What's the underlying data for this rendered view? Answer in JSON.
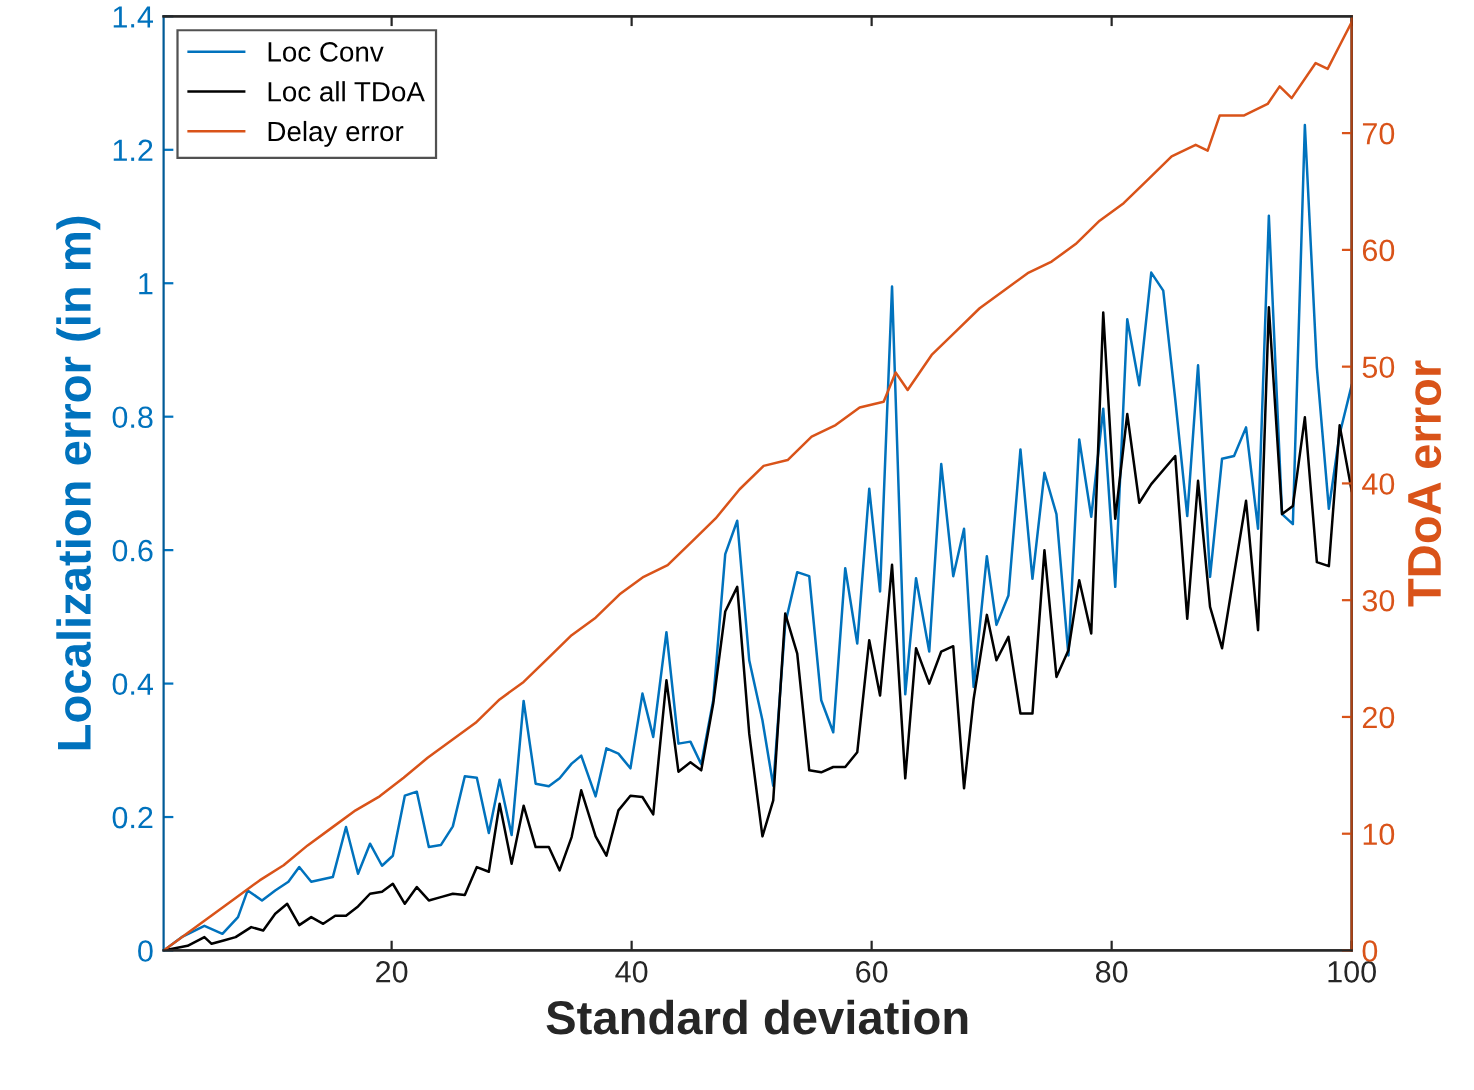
{
  "chart_data": {
    "type": "line",
    "xlabel": "Standard deviation",
    "ylabel": "Localization error (in m)",
    "y2label": "TDoA error",
    "series": [
      {
        "name": "Loc Conv",
        "color": "#0072bd",
        "x": [
          1,
          2.5,
          4.4,
          5.9,
          7.2,
          8.0,
          9.2,
          10.3,
          11.4,
          12.3,
          13.3,
          15.1,
          16.2,
          17.2,
          18.2,
          19.2,
          20.1,
          21.1,
          22.1,
          23.1,
          24.1,
          25.1,
          26.1,
          27.1,
          28.1,
          29.0,
          30.0,
          31.0,
          32.0,
          33.1,
          34.0,
          35.0,
          35.8,
          37.0,
          37.9,
          38.9,
          39.9,
          40.9,
          41.8,
          42.9,
          43.9,
          44.9,
          45.8,
          46.8,
          47.8,
          48.8,
          49.8,
          50.9,
          51.8,
          52.8,
          53.8,
          54.8,
          55.8,
          56.8,
          57.8,
          58.8,
          59.8,
          60.7,
          61.7,
          62.8,
          63.7,
          64.8,
          65.8,
          66.8,
          67.7,
          68.5,
          69.6,
          70.4,
          71.4,
          72.4,
          73.4,
          74.4,
          75.4,
          76.4,
          77.3,
          78.3,
          79.3,
          80.3,
          81.3,
          82.3,
          83.3,
          84.3,
          85.3,
          86.3,
          87.2,
          88.2,
          89.2,
          90.2,
          91.2,
          92.2,
          93.1,
          94.2,
          95.1,
          96.1,
          97.1,
          98.1,
          99.0,
          100
        ],
        "values": [
          0,
          0.02,
          0.037,
          0.025,
          0.05,
          0.09,
          0.075,
          0.09,
          0.103,
          0.125,
          0.103,
          0.11,
          0.185,
          0.115,
          0.16,
          0.127,
          0.142,
          0.232,
          0.238,
          0.155,
          0.158,
          0.186,
          0.261,
          0.259,
          0.176,
          0.256,
          0.173,
          0.374,
          0.25,
          0.246,
          0.258,
          0.28,
          0.292,
          0.231,
          0.303,
          0.295,
          0.273,
          0.385,
          0.32,
          0.477,
          0.31,
          0.313,
          0.279,
          0.375,
          0.594,
          0.644,
          0.435,
          0.345,
          0.247,
          0.49,
          0.567,
          0.561,
          0.375,
          0.327,
          0.573,
          0.46,
          0.692,
          0.538,
          0.995,
          0.384,
          0.558,
          0.448,
          0.729,
          0.561,
          0.632,
          0.395,
          0.591,
          0.488,
          0.532,
          0.751,
          0.557,
          0.716,
          0.654,
          0.442,
          0.766,
          0.65,
          0.812,
          0.545,
          0.946,
          0.847,
          1.016,
          0.989,
          0.826,
          0.651,
          0.877,
          0.56,
          0.737,
          0.741,
          0.784,
          0.632,
          1.101,
          0.654,
          0.639,
          1.237,
          0.874,
          0.662,
          0.774,
          0.847
        ]
      },
      {
        "name": "Loc all TDoA",
        "color": "#000000",
        "x": [
          1,
          3,
          4.4,
          5,
          6,
          7,
          8.3,
          9.3,
          10.3,
          11.3,
          12.3,
          13.3,
          14.3,
          15.3,
          16.2,
          17.2,
          18.2,
          19.2,
          20.1,
          21.1,
          22.1,
          23.1,
          24.1,
          25.1,
          26.1,
          27.1,
          28.1,
          29.0,
          30.0,
          31.0,
          32.0,
          33.1,
          34.0,
          35.0,
          35.8,
          37.0,
          37.9,
          38.9,
          39.9,
          40.9,
          41.8,
          42.9,
          43.9,
          44.9,
          45.8,
          46.8,
          47.8,
          48.8,
          49.8,
          50.9,
          51.8,
          52.8,
          53.8,
          54.8,
          55.8,
          56.8,
          57.8,
          58.8,
          59.8,
          60.7,
          61.7,
          62.8,
          63.7,
          64.8,
          65.8,
          66.8,
          67.7,
          68.5,
          69.6,
          70.4,
          71.4,
          72.4,
          73.4,
          74.4,
          75.4,
          76.4,
          77.3,
          78.3,
          79.3,
          80.3,
          81.3,
          82.3,
          83.3,
          85.3,
          86.3,
          87.2,
          88.2,
          89.2,
          90.2,
          91.2,
          92.2,
          93.1,
          94.2,
          95.1,
          96.1,
          97.1,
          98.1,
          99.0,
          100
        ],
        "values": [
          0,
          0.007,
          0.02,
          0.01,
          0.015,
          0.02,
          0.035,
          0.03,
          0.055,
          0.07,
          0.038,
          0.05,
          0.04,
          0.052,
          0.052,
          0.066,
          0.085,
          0.088,
          0.1,
          0.07,
          0.095,
          0.075,
          0.08,
          0.085,
          0.083,
          0.125,
          0.118,
          0.22,
          0.13,
          0.217,
          0.155,
          0.155,
          0.12,
          0.17,
          0.24,
          0.171,
          0.142,
          0.21,
          0.232,
          0.23,
          0.204,
          0.405,
          0.268,
          0.282,
          0.27,
          0.37,
          0.508,
          0.545,
          0.325,
          0.171,
          0.225,
          0.505,
          0.445,
          0.27,
          0.267,
          0.275,
          0.275,
          0.297,
          0.465,
          0.382,
          0.578,
          0.258,
          0.453,
          0.4,
          0.448,
          0.456,
          0.243,
          0.377,
          0.503,
          0.435,
          0.47,
          0.355,
          0.355,
          0.6,
          0.41,
          0.45,
          0.555,
          0.475,
          0.956,
          0.647,
          0.804,
          0.671,
          0.699,
          0.741,
          0.497,
          0.704,
          0.515,
          0.453,
          0.564,
          0.674,
          0.48,
          0.964,
          0.654,
          0.666,
          0.799,
          0.582,
          0.576,
          0.787,
          0.689
        ]
      },
      {
        "name": "Delay error",
        "color": "#d95319",
        "axis": "y2",
        "x": [
          1,
          3,
          5,
          7,
          9,
          11,
          13,
          15,
          17,
          19,
          21,
          23,
          25,
          27,
          29,
          31,
          33,
          35,
          37,
          39,
          41,
          43,
          45,
          47,
          49,
          51,
          53,
          55,
          57,
          59,
          61,
          62,
          63,
          65,
          67,
          69,
          71,
          73,
          75,
          77,
          79,
          81,
          83,
          85,
          87,
          88,
          89,
          91,
          93,
          94,
          95,
          97,
          98,
          99,
          100
        ],
        "values": [
          0,
          1.5,
          3,
          4.5,
          6,
          7.3,
          9,
          10.5,
          12,
          13.2,
          14.8,
          16.5,
          18,
          19.5,
          21.5,
          23,
          25,
          27,
          28.5,
          30.5,
          32,
          33,
          35,
          37,
          39.5,
          41.5,
          42,
          44,
          45,
          46.5,
          47,
          49.5,
          48,
          51,
          53,
          55,
          56.5,
          58,
          59,
          60.5,
          62.5,
          64,
          66,
          68,
          69,
          68.5,
          71.5,
          71.5,
          72.5,
          74,
          73,
          76,
          75.5,
          77.5,
          79.5
        ]
      }
    ],
    "xlim": [
      1,
      100
    ],
    "xticks": [
      20,
      40,
      60,
      80,
      100
    ],
    "ylim": [
      0,
      1.4
    ],
    "yticks": [
      0,
      0.2,
      0.4,
      0.6,
      0.8,
      1,
      1.2,
      1.4
    ],
    "y2lim": [
      0,
      80
    ],
    "y2ticks": [
      0,
      10,
      20,
      30,
      40,
      50,
      60,
      70
    ],
    "legend": "top left",
    "grid": false,
    "marker": "none",
    "line_style": "solid"
  }
}
